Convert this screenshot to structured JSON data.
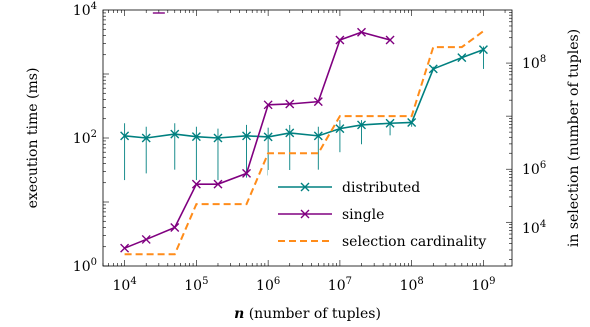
{
  "chart_data": {
    "type": "line",
    "xlabel": {
      "var": "n",
      "rest": " (number of tuples)"
    },
    "ylabel": "execution time (ms)",
    "ylabel_right": "in selection (number of tuples)",
    "x_scale": "log",
    "y_scale": "log",
    "y2_scale": "log",
    "xlim": [
      5000,
      2500000000
    ],
    "ylim": [
      1,
      10000
    ],
    "y2lim": [
      15000,
      1000000000
    ],
    "x_ticks": [
      {
        "value": 10000,
        "base": "10",
        "exp": "4"
      },
      {
        "value": 100000,
        "base": "10",
        "exp": "5"
      },
      {
        "value": 1000000,
        "base": "10",
        "exp": "6"
      },
      {
        "value": 10000000,
        "base": "10",
        "exp": "7"
      },
      {
        "value": 100000000,
        "base": "10",
        "exp": "8"
      },
      {
        "value": 1000000000,
        "base": "10",
        "exp": "9"
      }
    ],
    "y_ticks": [
      {
        "value": 1,
        "base": "10",
        "exp": "0"
      },
      {
        "value": 100,
        "base": "10",
        "exp": "2"
      },
      {
        "value": 10000,
        "base": "10",
        "exp": "4"
      }
    ],
    "y2_ticks": [
      {
        "value": 10000,
        "base": "10",
        "exp": "4"
      },
      {
        "value": 1000000,
        "base": "10",
        "exp": "6"
      },
      {
        "value": 100000000,
        "base": "10",
        "exp": "8"
      }
    ],
    "series": [
      {
        "name": "distributed",
        "color": "#008080",
        "marker": "x",
        "x": [
          10000,
          20000,
          50000,
          100000,
          200000,
          500000,
          1000000,
          2000000,
          5000000,
          10000000,
          20000000,
          50000000,
          100000000,
          200000000,
          500000000,
          1000000000
        ],
        "y": [
          108,
          100,
          115,
          105,
          100,
          108,
          104,
          120,
          108,
          140,
          160,
          170,
          175,
          1200,
          1800,
          2400
        ],
        "err_low": [
          22,
          28,
          32,
          22,
          22,
          24,
          26,
          28,
          32,
          60,
          80,
          110,
          150,
          1200,
          1800,
          1200
        ],
        "err_high": [
          170,
          150,
          170,
          150,
          140,
          160,
          145,
          160,
          150,
          190,
          190,
          180,
          180,
          1300,
          1900,
          2700
        ]
      },
      {
        "name": "single",
        "color": "#800080",
        "marker": "x",
        "x": [
          10000,
          20000,
          50000,
          100000,
          200000,
          500000,
          1000000,
          2000000,
          5000000,
          10000000,
          20000000,
          50000000
        ],
        "y": [
          1.9,
          2.6,
          4.0,
          19,
          19,
          28,
          330,
          340,
          370,
          3400,
          4500,
          3400
        ]
      },
      {
        "name": "selection cardinality",
        "color": "#ff8c1a",
        "axis": "right",
        "dash": "dashed",
        "x": [
          10000,
          20000,
          50000,
          100000,
          200000,
          500000,
          1000000,
          2000000,
          5000000,
          10000000,
          20000000,
          50000000,
          100000000,
          200000000,
          500000000,
          1000000000
        ],
        "y": [
          25000,
          25000,
          25000,
          220000,
          220000,
          220000,
          2000000,
          2000000,
          2000000,
          10000000,
          10000000,
          10000000,
          10000000,
          200000000,
          200000000,
          400000000
        ]
      }
    ],
    "legend": {
      "position": "bottom-right",
      "entries": [
        "distributed",
        "single",
        "selection cardinality"
      ]
    },
    "grid": false
  }
}
